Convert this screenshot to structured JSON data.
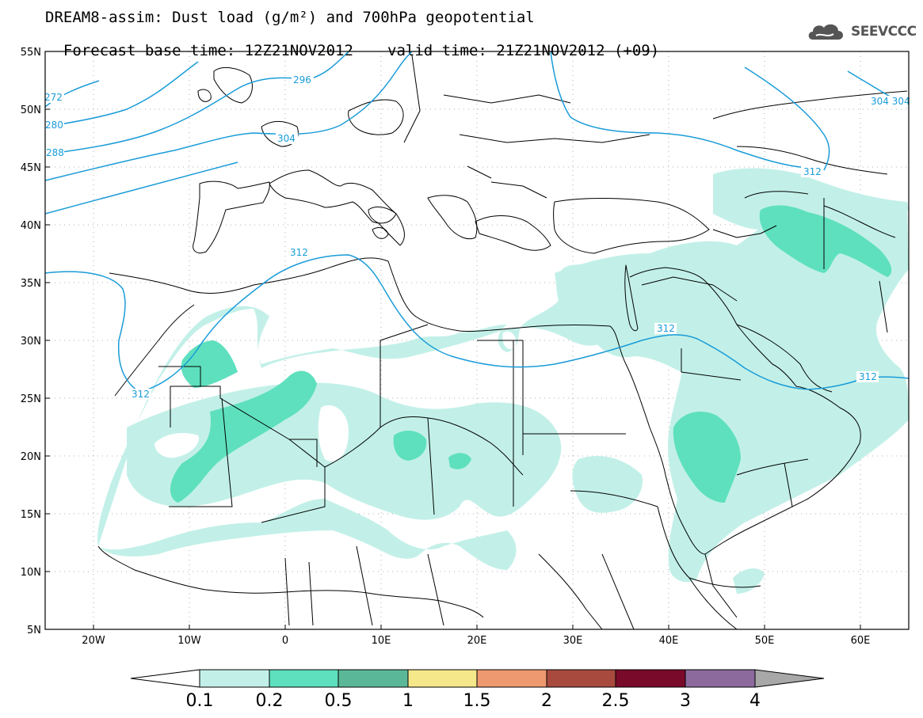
{
  "title": {
    "line1": "DREAM8-assim: Dust load (g/m²) and 700hPa geopotential",
    "base_time": "Forecast base time: 12Z21NOV2012",
    "valid_time": "valid time: 21Z21NOV2012 (+09)"
  },
  "logo": {
    "text": "SEEVCCC",
    "icon": "cloud-icon"
  },
  "axes": {
    "lat_labels": [
      "55N",
      "50N",
      "45N",
      "40N",
      "35N",
      "30N",
      "25N",
      "20N",
      "15N",
      "10N",
      "5N"
    ],
    "lon_labels": [
      "20W",
      "10W",
      "0",
      "10E",
      "20E",
      "30E",
      "40E",
      "50E",
      "60E"
    ],
    "lat_range": [
      5,
      55
    ],
    "lon_range": [
      -25,
      65
    ]
  },
  "contour_labels": [
    "272",
    "280",
    "288",
    "296",
    "304",
    "312",
    "312",
    "312",
    "312",
    "312",
    "304 304"
  ],
  "colorbar": {
    "labels": [
      "0.1",
      "0.2",
      "0.5",
      "1",
      "1.5",
      "2",
      "2.5",
      "3",
      "4"
    ],
    "colors": [
      "#ffffff",
      "#c2f0e8",
      "#5ee0be",
      "#5ab898",
      "#f5e88a",
      "#ee9970",
      "#a84a3e",
      "#7a0a2a",
      "#8c6a9e",
      "#a8a8a8"
    ]
  },
  "colors": {
    "dust_low": "#c2f0e8",
    "dust_mid": "#5ee0be",
    "geopotential_line": "#1a9cd8",
    "coastline": "#000000"
  }
}
